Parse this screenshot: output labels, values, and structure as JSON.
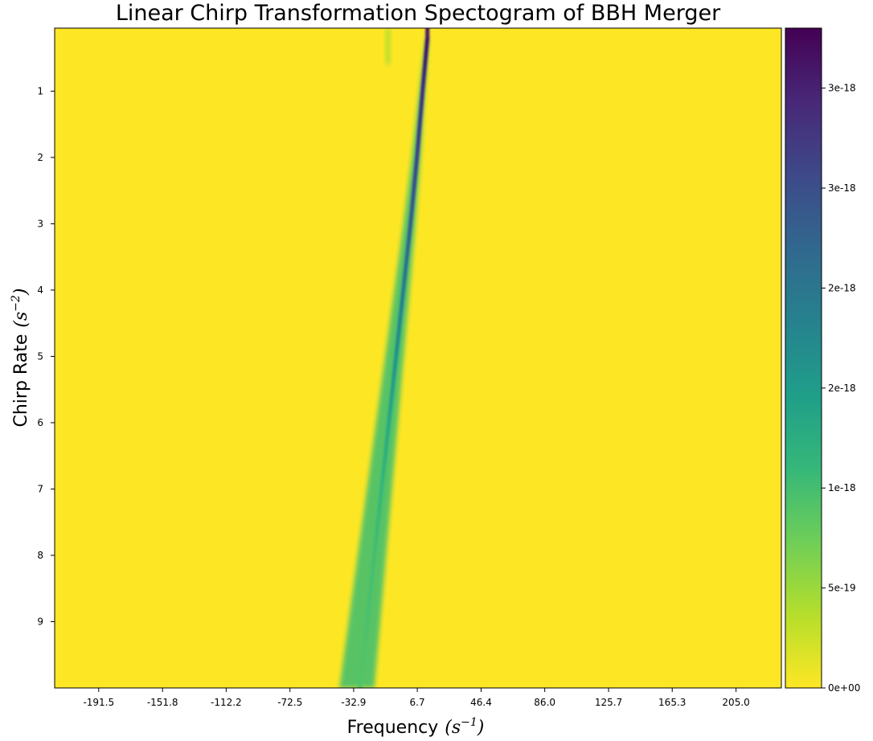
{
  "chart_data": {
    "type": "heatmap",
    "title": "Linear Chirp Transformation Spectogram of BBH Merger",
    "xlabel": "Frequency",
    "xlabel_unit_base": "s",
    "xlabel_unit_exp": "−1",
    "ylabel": "Chirp Rate",
    "ylabel_unit_base": "s",
    "ylabel_unit_exp": "−2",
    "x_ticks": [
      -191.5,
      -151.8,
      -112.2,
      -72.5,
      -32.9,
      6.7,
      46.4,
      86.0,
      125.7,
      165.3,
      205.0
    ],
    "x_tick_labels": [
      "-191.5",
      "-151.8",
      "-112.2",
      "-72.5",
      "-32.9",
      "6.7",
      "46.4",
      "86.0",
      "125.7",
      "165.3",
      "205.0"
    ],
    "xlim": [
      -218.9,
      233.2
    ],
    "y_ticks": [
      1,
      2,
      3,
      4,
      5,
      6,
      7,
      8,
      9
    ],
    "y_tick_labels": [
      "1",
      "2",
      "3",
      "4",
      "5",
      "6",
      "7",
      "8",
      "9"
    ],
    "ylim": [
      0.05,
      10.0
    ],
    "y_inverted": true,
    "colormap": "viridis",
    "colormap_stops": [
      "#fde725",
      "#b5de2b",
      "#6ece58",
      "#35b779",
      "#1f9e89",
      "#26828e",
      "#31688e",
      "#3e4989",
      "#482878",
      "#440154"
    ],
    "colorbar": {
      "range": [
        0,
        3.3e-18
      ],
      "ticks": [
        0,
        5e-19,
        1e-18,
        1.5e-18,
        2e-18,
        2.5e-18,
        3e-18
      ],
      "tick_labels": [
        "0e+00",
        "5e-19",
        "1e-18",
        "2e-18",
        "2e-18",
        "3e-18",
        "3e-18"
      ]
    },
    "ridge": {
      "description": "main chirp ridge: frequency vs chirp rate",
      "points": [
        {
          "chirp_rate": 0.2,
          "frequency": 13.0,
          "intensity": 3.1e-18
        },
        {
          "chirp_rate": 1.0,
          "frequency": 10.0,
          "intensity": 2.8e-18
        },
        {
          "chirp_rate": 2.0,
          "frequency": 6.5,
          "intensity": 2.6e-18
        },
        {
          "chirp_rate": 3.0,
          "frequency": 2.5,
          "intensity": 2.3e-18
        },
        {
          "chirp_rate": 4.0,
          "frequency": -2.0,
          "intensity": 1.9e-18
        },
        {
          "chirp_rate": 5.0,
          "frequency": -6.5,
          "intensity": 1.6e-18
        },
        {
          "chirp_rate": 6.0,
          "frequency": -11.0,
          "intensity": 1.3e-18
        },
        {
          "chirp_rate": 7.0,
          "frequency": -15.5,
          "intensity": 1.1e-18
        },
        {
          "chirp_rate": 8.0,
          "frequency": -20.0,
          "intensity": 1e-18
        },
        {
          "chirp_rate": 9.0,
          "frequency": -24.5,
          "intensity": 9.5e-19
        },
        {
          "chirp_rate": 10.0,
          "frequency": -29.0,
          "intensity": 9e-19
        }
      ]
    },
    "secondary_streak": {
      "frequency": -11.5,
      "chirp_rate_range": [
        0.05,
        0.6
      ],
      "intensity": 4e-19
    },
    "background_intensity": 0
  }
}
